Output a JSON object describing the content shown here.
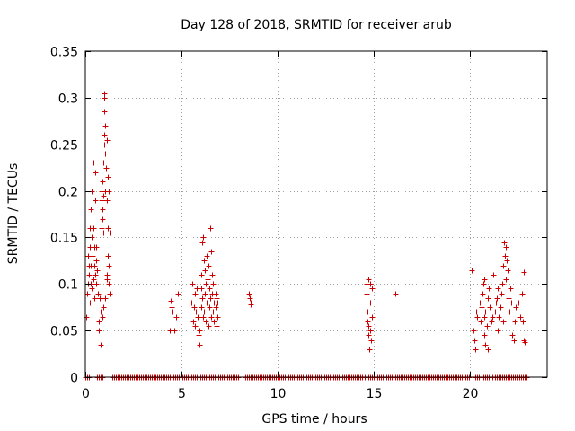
{
  "chart_data": {
    "type": "scatter",
    "title": "Day 128 of 2018, SRMTID for receiver arub",
    "xlabel": "GPS time / hours",
    "ylabel": "SRMTID / TECUs",
    "xlim": [
      0,
      24
    ],
    "ylim": [
      0,
      0.35
    ],
    "xticks": [
      0,
      5,
      10,
      15,
      20
    ],
    "yticks": [
      0,
      0.05,
      0.1,
      0.15,
      0.2,
      0.25,
      0.3,
      0.35
    ],
    "xtick_labels": [
      "0",
      "5",
      "10",
      "15",
      "20"
    ],
    "ytick_labels": [
      "0",
      "0.05",
      "0.1",
      "0.15",
      "0.2",
      "0.25",
      "0.3",
      "0.35"
    ],
    "grid": true,
    "marker": "+",
    "color": "#cc0000",
    "series": [
      {
        "name": "SRMTID",
        "points": [
          [
            0.05,
            0.065
          ],
          [
            0.1,
            0.09
          ],
          [
            0.12,
            0.1
          ],
          [
            0.15,
            0.13
          ],
          [
            0.18,
            0.11
          ],
          [
            0.2,
            0.12
          ],
          [
            0.22,
            0.14
          ],
          [
            0.25,
            0.16
          ],
          [
            0.25,
            0.08
          ],
          [
            0.28,
            0.1
          ],
          [
            0.3,
            0.18
          ],
          [
            0.3,
            0.12
          ],
          [
            0.32,
            0.15
          ],
          [
            0.35,
            0.2
          ],
          [
            0.35,
            0.095
          ],
          [
            0.38,
            0.13
          ],
          [
            0.4,
            0.23
          ],
          [
            0.4,
            0.16
          ],
          [
            0.42,
            0.105
          ],
          [
            0.45,
            0.14
          ],
          [
            0.45,
            0.085
          ],
          [
            0.48,
            0.12
          ],
          [
            0.5,
            0.22
          ],
          [
            0.5,
            0.11
          ],
          [
            0.52,
            0.19
          ],
          [
            0.55,
            0.1
          ],
          [
            0.55,
            0.14
          ],
          [
            0.58,
            0.125
          ],
          [
            0.6,
            0.115
          ],
          [
            0.65,
            0.09
          ],
          [
            0.7,
            0.06
          ],
          [
            0.72,
            0.05
          ],
          [
            0.75,
            0.085
          ],
          [
            0.78,
            0.07
          ],
          [
            0.8,
            0.035
          ],
          [
            0.82,
            0.16
          ],
          [
            0.85,
            0.19
          ],
          [
            0.85,
            0.2
          ],
          [
            0.88,
            0.18
          ],
          [
            0.9,
            0.21
          ],
          [
            0.9,
            0.17
          ],
          [
            0.92,
            0.195
          ],
          [
            0.95,
            0.23
          ],
          [
            0.95,
            0.155
          ],
          [
            0.98,
            0.3
          ],
          [
            0.98,
            0.25
          ],
          [
            1.0,
            0.305
          ],
          [
            1.0,
            0.26
          ],
          [
            1.0,
            0.285
          ],
          [
            1.02,
            0.24
          ],
          [
            1.05,
            0.27
          ],
          [
            1.05,
            0.2
          ],
          [
            1.08,
            0.225
          ],
          [
            1.1,
            0.255
          ],
          [
            1.1,
            0.19
          ],
          [
            1.12,
            0.11
          ],
          [
            1.15,
            0.215
          ],
          [
            1.15,
            0.16
          ],
          [
            1.18,
            0.13
          ],
          [
            1.2,
            0.2
          ],
          [
            1.2,
            0.12
          ],
          [
            1.22,
            0.1
          ],
          [
            1.25,
            0.09
          ],
          [
            1.25,
            0.155
          ],
          [
            0.88,
            0.065
          ],
          [
            0.92,
            0.075
          ],
          [
            1.05,
            0.085
          ],
          [
            1.1,
            0.105
          ],
          [
            4.4,
            0.05
          ],
          [
            4.45,
            0.082
          ],
          [
            4.5,
            0.075
          ],
          [
            4.55,
            0.07
          ],
          [
            4.6,
            0.05
          ],
          [
            4.7,
            0.065
          ],
          [
            4.8,
            0.09
          ],
          [
            5.5,
            0.08
          ],
          [
            5.55,
            0.1
          ],
          [
            5.6,
            0.06
          ],
          [
            5.65,
            0.075
          ],
          [
            5.7,
            0.09
          ],
          [
            5.7,
            0.055
          ],
          [
            5.75,
            0.07
          ],
          [
            5.8,
            0.095
          ],
          [
            5.85,
            0.065
          ],
          [
            5.9,
            0.08
          ],
          [
            5.9,
            0.045
          ],
          [
            5.95,
            0.035
          ],
          [
            6.0,
            0.11
          ],
          [
            6.0,
            0.075
          ],
          [
            6.05,
            0.145
          ],
          [
            6.05,
            0.085
          ],
          [
            6.1,
            0.15
          ],
          [
            6.1,
            0.065
          ],
          [
            6.15,
            0.125
          ],
          [
            6.15,
            0.07
          ],
          [
            6.2,
            0.115
          ],
          [
            6.2,
            0.09
          ],
          [
            6.25,
            0.1
          ],
          [
            6.25,
            0.06
          ],
          [
            6.3,
            0.13
          ],
          [
            6.3,
            0.08
          ],
          [
            6.35,
            0.105
          ],
          [
            6.35,
            0.07
          ],
          [
            6.4,
            0.12
          ],
          [
            6.4,
            0.055
          ],
          [
            6.45,
            0.095
          ],
          [
            6.45,
            0.075
          ],
          [
            6.5,
            0.16
          ],
          [
            6.5,
            0.085
          ],
          [
            6.55,
            0.135
          ],
          [
            6.55,
            0.065
          ],
          [
            6.6,
            0.11
          ],
          [
            6.6,
            0.09
          ],
          [
            6.65,
            0.1
          ],
          [
            6.65,
            0.07
          ],
          [
            6.7,
            0.08
          ],
          [
            6.7,
            0.06
          ],
          [
            6.75,
            0.09
          ],
          [
            6.75,
            0.075
          ],
          [
            6.8,
            0.055
          ],
          [
            6.8,
            0.085
          ],
          [
            6.85,
            0.065
          ],
          [
            6.85,
            0.08
          ],
          [
            5.95,
            0.05
          ],
          [
            6.02,
            0.095
          ],
          [
            8.5,
            0.09
          ],
          [
            8.55,
            0.085
          ],
          [
            8.6,
            0.08
          ],
          [
            8.6,
            0.078
          ],
          [
            14.6,
            0.1
          ],
          [
            14.62,
            0.09
          ],
          [
            14.65,
            0.07
          ],
          [
            14.68,
            0.06
          ],
          [
            14.7,
            0.045
          ],
          [
            14.72,
            0.055
          ],
          [
            14.75,
            0.03
          ],
          [
            14.78,
            0.1
          ],
          [
            14.8,
            0.08
          ],
          [
            14.82,
            0.05
          ],
          [
            14.85,
            0.04
          ],
          [
            14.88,
            0.065
          ],
          [
            14.9,
            0.095
          ],
          [
            14.7,
            0.105
          ],
          [
            16.1,
            0.09
          ],
          [
            20.1,
            0.115
          ],
          [
            20.15,
            0.05
          ],
          [
            20.2,
            0.04
          ],
          [
            20.25,
            0.03
          ],
          [
            20.3,
            0.07
          ],
          [
            20.35,
            0.065
          ],
          [
            20.5,
            0.08
          ],
          [
            20.55,
            0.06
          ],
          [
            20.6,
            0.075
          ],
          [
            20.65,
            0.09
          ],
          [
            20.7,
            0.1
          ],
          [
            20.75,
            0.065
          ],
          [
            20.8,
            0.07
          ],
          [
            20.85,
            0.055
          ],
          [
            20.9,
            0.085
          ],
          [
            20.95,
            0.095
          ],
          [
            21.0,
            0.075
          ],
          [
            21.05,
            0.08
          ],
          [
            21.1,
            0.06
          ],
          [
            21.15,
            0.065
          ],
          [
            20.72,
            0.045
          ],
          [
            20.8,
            0.035
          ],
          [
            20.9,
            0.03
          ],
          [
            20.75,
            0.105
          ],
          [
            21.2,
            0.11
          ],
          [
            21.3,
            0.07
          ],
          [
            21.35,
            0.08
          ],
          [
            21.4,
            0.085
          ],
          [
            21.45,
            0.095
          ],
          [
            21.5,
            0.065
          ],
          [
            21.55,
            0.075
          ],
          [
            21.6,
            0.09
          ],
          [
            21.65,
            0.1
          ],
          [
            21.7,
            0.06
          ],
          [
            21.75,
            0.145
          ],
          [
            21.8,
            0.13
          ],
          [
            21.85,
            0.14
          ],
          [
            21.9,
            0.125
          ],
          [
            21.95,
            0.115
          ],
          [
            22.0,
            0.085
          ],
          [
            22.05,
            0.07
          ],
          [
            22.1,
            0.095
          ],
          [
            22.15,
            0.08
          ],
          [
            22.2,
            0.045
          ],
          [
            22.25,
            0.04
          ],
          [
            22.3,
            0.06
          ],
          [
            22.35,
            0.075
          ],
          [
            22.4,
            0.07
          ],
          [
            22.5,
            0.08
          ],
          [
            22.6,
            0.065
          ],
          [
            22.7,
            0.09
          ],
          [
            22.75,
            0.06
          ],
          [
            22.8,
            0.04
          ],
          [
            22.85,
            0.038
          ],
          [
            22.8,
            0.113
          ],
          [
            21.45,
            0.05
          ],
          [
            21.7,
            0.12
          ],
          [
            21.85,
            0.105
          ]
        ]
      },
      {
        "name": "SRMTID zero",
        "x_ranges_at_zero": [
          [
            0.0,
            0.25
          ],
          [
            0.6,
            0.95
          ],
          [
            1.4,
            8.0
          ],
          [
            8.3,
            14.4
          ],
          [
            14.5,
            20.0
          ],
          [
            20.25,
            20.45
          ],
          [
            20.6,
            21.2
          ],
          [
            21.3,
            22.4
          ],
          [
            22.45,
            22.95
          ]
        ]
      }
    ]
  }
}
